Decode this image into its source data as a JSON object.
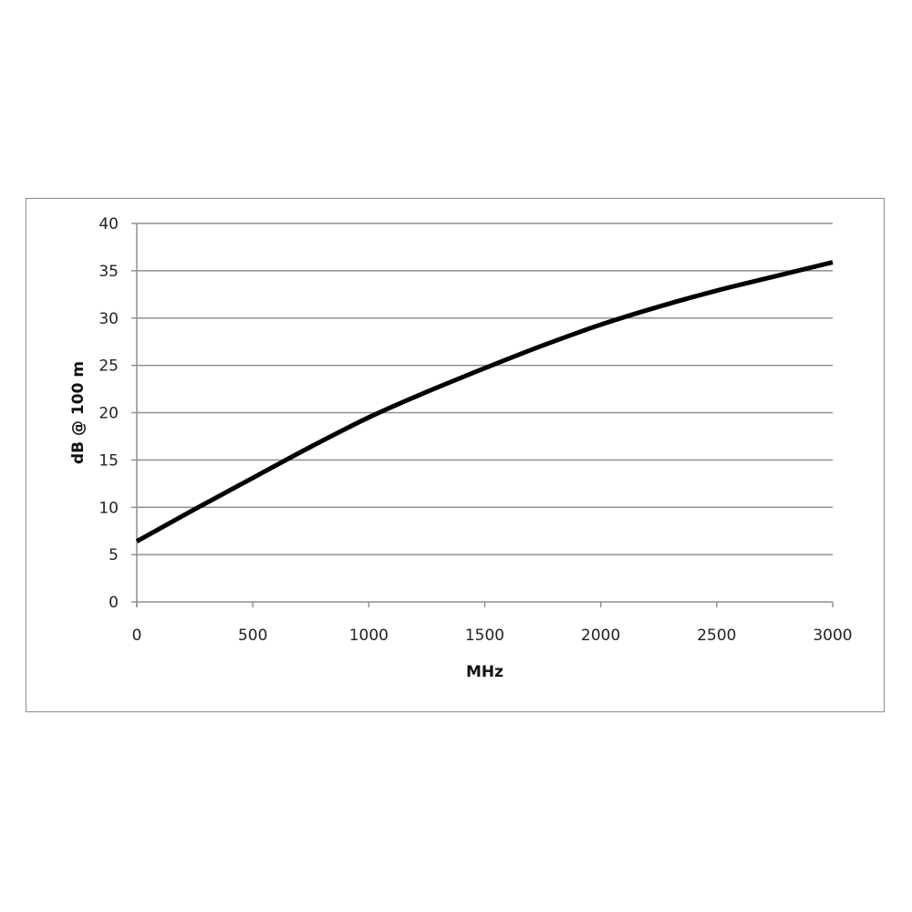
{
  "chart_data": {
    "type": "line",
    "title": "",
    "xlabel": "MHz",
    "ylabel": "dB @ 100 m",
    "xlim": [
      0,
      3000
    ],
    "ylim": [
      0,
      40
    ],
    "xticks": [
      0,
      500,
      1000,
      1500,
      2000,
      2500,
      3000
    ],
    "yticks": [
      0,
      5,
      10,
      15,
      20,
      25,
      30,
      35,
      40
    ],
    "grid": "horizontal",
    "legend": "none",
    "series": [
      {
        "color": "#000000",
        "x": [
          0,
          250,
          500,
          750,
          1000,
          1250,
          1500,
          1750,
          2000,
          2250,
          2500,
          2750,
          3000
        ],
        "y": [
          6.4,
          9.8,
          13.1,
          16.4,
          19.5,
          22.2,
          24.7,
          27.1,
          29.3,
          31.2,
          32.9,
          34.4,
          35.9
        ]
      }
    ]
  }
}
